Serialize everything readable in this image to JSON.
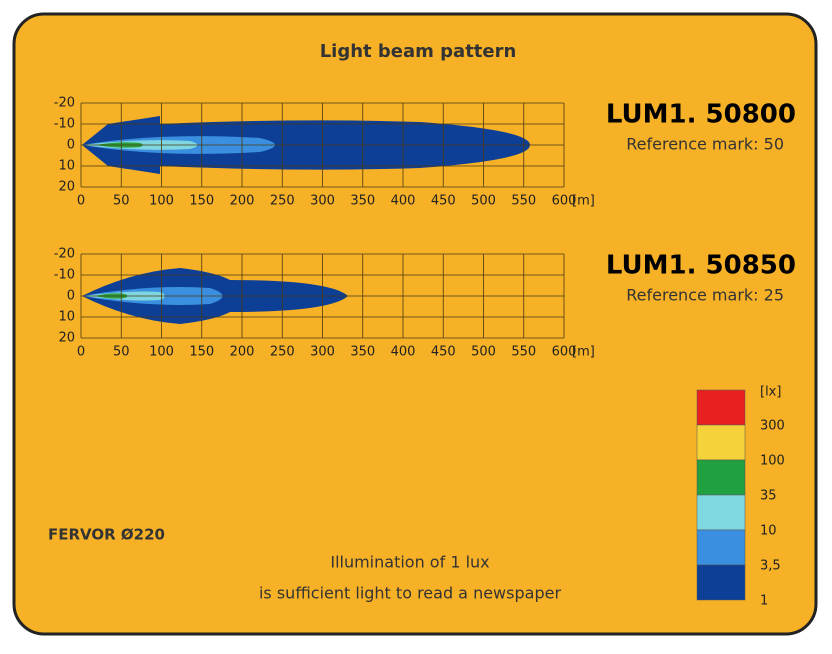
{
  "title": "Light beam pattern",
  "axes": {
    "yticks": [
      "-20",
      "-10",
      "0",
      "10",
      "20"
    ],
    "xticks": [
      "0",
      "50",
      "100",
      "150",
      "200",
      "250",
      "300",
      "350",
      "400",
      "450",
      "500",
      "550",
      "600"
    ],
    "unit": "[m]"
  },
  "plots": [
    {
      "model": "LUM1. 50800",
      "reference": "Reference mark: 50"
    },
    {
      "model": "LUM1. 50850",
      "reference": "Reference mark: 25"
    }
  ],
  "legend": {
    "unit": "[lx]",
    "levels": [
      "300",
      "100",
      "35",
      "10",
      "3,5",
      "1"
    ]
  },
  "product": "FERVOR Ø220",
  "note": [
    "Illumination of 1 lux",
    "is sufficient light to read a newspaper"
  ]
}
